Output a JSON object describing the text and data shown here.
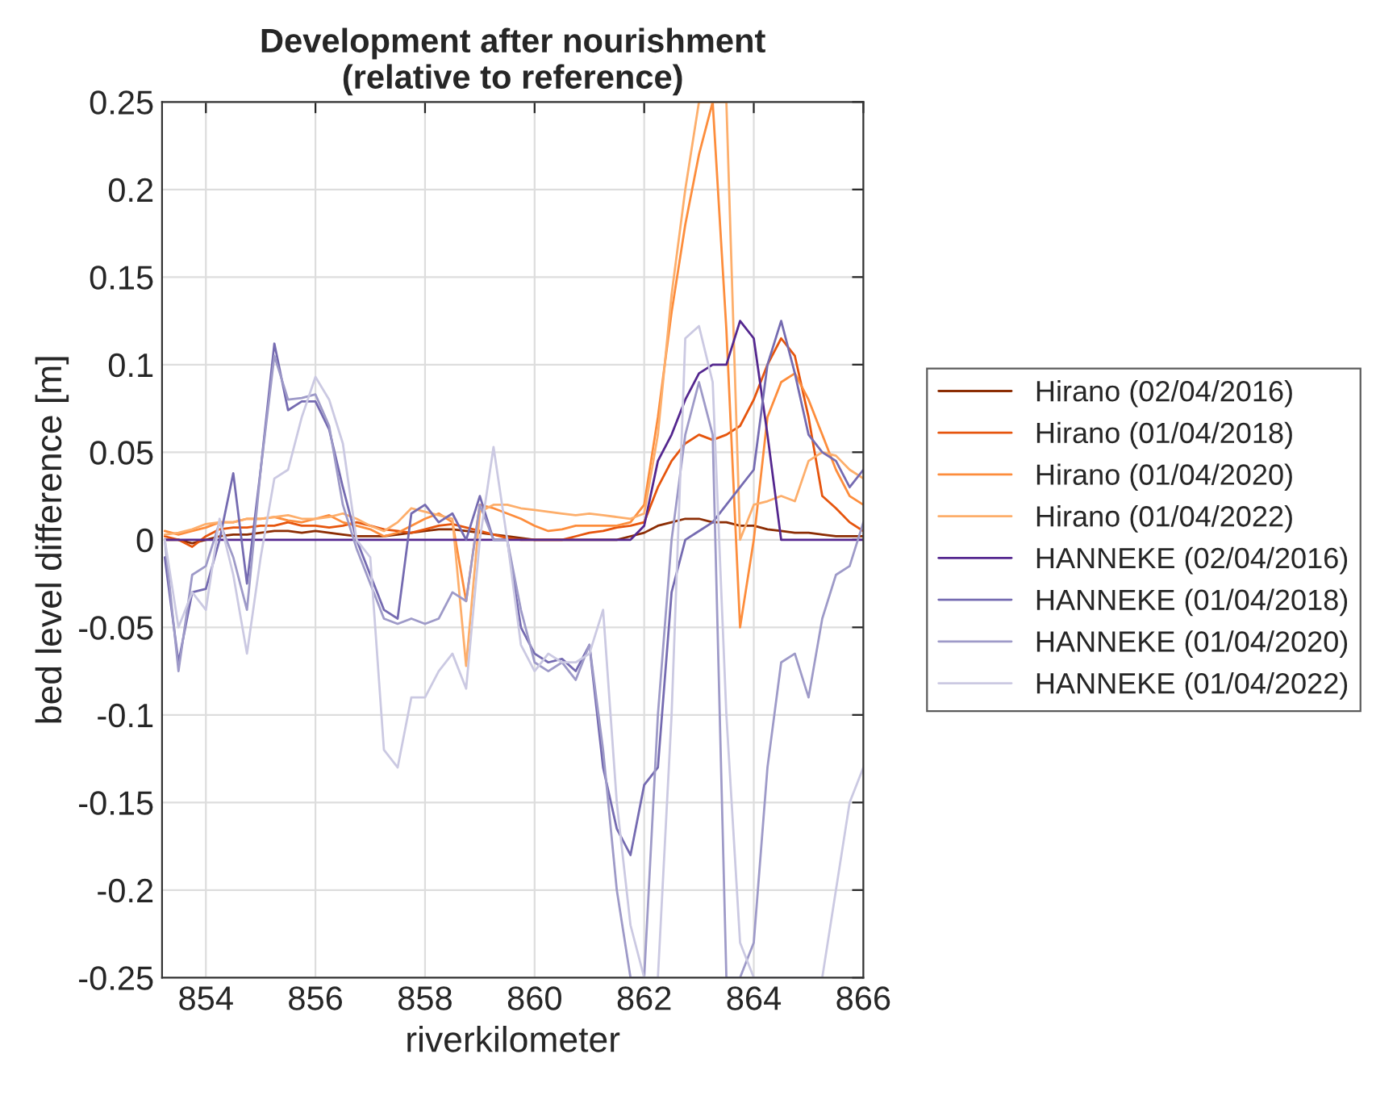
{
  "chart_data": {
    "type": "line",
    "title": "Development after nourishment\n(relative to reference)",
    "xlabel": "riverkilometer",
    "ylabel": "bed level difference [m]",
    "x": [
      853.25,
      853.5,
      853.75,
      854,
      854.25,
      854.5,
      854.75,
      855,
      855.25,
      855.5,
      855.75,
      856,
      856.25,
      856.5,
      856.75,
      857,
      857.25,
      857.5,
      857.75,
      858,
      858.25,
      858.5,
      858.75,
      859,
      859.25,
      859.5,
      859.75,
      860,
      860.25,
      860.5,
      860.75,
      861,
      861.25,
      861.5,
      861.75,
      862,
      862.25,
      862.5,
      862.75,
      863,
      863.25,
      863.5,
      863.75,
      864,
      864.25,
      864.5,
      864.75,
      865,
      865.25,
      865.5,
      865.75,
      866
    ],
    "xlim": [
      853.2,
      866
    ],
    "xticks": [
      854,
      856,
      858,
      860,
      862,
      864,
      866
    ],
    "ylim": [
      -0.25,
      0.25
    ],
    "yticks": [
      -0.25,
      -0.2,
      -0.15,
      -0.1,
      -0.05,
      0,
      0.05,
      0.1,
      0.15,
      0.2,
      0.25
    ],
    "grid": true,
    "legend": "right",
    "series": [
      {
        "name": "Hirano (02/04/2016)",
        "color": "#8c2d04",
        "values": [
          0,
          0,
          -0.002,
          0,
          0.002,
          0.003,
          0.003,
          0.004,
          0.005,
          0.005,
          0.004,
          0.005,
          0.004,
          0.003,
          0.002,
          0.002,
          0.002,
          0.003,
          0.004,
          0.005,
          0.006,
          0.006,
          0.005,
          0.004,
          0.003,
          0.002,
          0.001,
          0,
          0,
          0,
          0,
          0,
          0,
          0,
          0.002,
          0.004,
          0.008,
          0.01,
          0.012,
          0.012,
          0.01,
          0.01,
          0.008,
          0.008,
          0.006,
          0.005,
          0.004,
          0.004,
          0.003,
          0.002,
          0.002,
          0.002
        ]
      },
      {
        "name": "Hirano (01/04/2018)",
        "color": "#e6550d",
        "values": [
          0.002,
          0,
          -0.004,
          0.002,
          0.006,
          0.007,
          0.007,
          0.008,
          0.008,
          0.01,
          0.008,
          0.008,
          0.007,
          0.008,
          0.01,
          0.008,
          0.006,
          0.005,
          0.004,
          0.006,
          0.008,
          0.009,
          0.007,
          0.005,
          0.003,
          0.001,
          0,
          0,
          0,
          0,
          0.002,
          0.004,
          0.005,
          0.007,
          0.008,
          0.01,
          0.03,
          0.045,
          0.055,
          0.06,
          0.057,
          0.06,
          0.065,
          0.08,
          0.1,
          0.115,
          0.105,
          0.07,
          0.025,
          0.018,
          0.01,
          0.005
        ]
      },
      {
        "name": "Hirano (01/04/2020)",
        "color": "#fd8d3c",
        "values": [
          0.005,
          0.003,
          0.005,
          0.007,
          0.01,
          0.01,
          0.012,
          0.012,
          0.013,
          0.011,
          0.01,
          0.012,
          0.014,
          0.01,
          0.008,
          0.006,
          0.002,
          0.004,
          0.008,
          0.012,
          0.015,
          0.01,
          -0.035,
          0.02,
          0.018,
          0.015,
          0.012,
          0.008,
          0.005,
          0.006,
          0.008,
          0.008,
          0.008,
          0.008,
          0.01,
          0.02,
          0.07,
          0.13,
          0.18,
          0.22,
          0.25,
          0.12,
          -0.05,
          0.0,
          0.07,
          0.09,
          0.095,
          0.08,
          0.06,
          0.04,
          0.025,
          0.02
        ]
      },
      {
        "name": "Hirano (01/04/2022)",
        "color": "#fdae6b",
        "values": [
          0.003,
          0.004,
          0.006,
          0.009,
          0.01,
          0.01,
          0.012,
          0.012,
          0.013,
          0.014,
          0.012,
          0.012,
          0.013,
          0.015,
          0.012,
          0.008,
          0.005,
          0.01,
          0.018,
          0.016,
          0.014,
          0.012,
          -0.072,
          0.016,
          0.02,
          0.02,
          0.018,
          0.017,
          0.016,
          0.015,
          0.014,
          0.015,
          0.014,
          0.013,
          0.012,
          0.015,
          0.06,
          0.14,
          0.2,
          0.25,
          0.25,
          0.25,
          0.0,
          0.02,
          0.022,
          0.025,
          0.022,
          0.045,
          0.05,
          0.048,
          0.04,
          0.035
        ]
      },
      {
        "name": "HANNEKE (02/04/2016)",
        "color": "#54278f",
        "values": [
          0,
          0,
          0,
          0,
          0,
          0,
          0,
          0,
          0,
          0,
          0,
          0,
          0,
          0,
          0,
          0,
          0,
          0,
          0,
          0,
          0,
          0,
          0,
          0,
          0,
          0,
          0,
          0,
          0,
          0,
          0,
          0,
          0,
          0,
          0,
          0.008,
          0.045,
          0.06,
          0.08,
          0.095,
          0.1,
          0.1,
          0.125,
          0.115,
          0.06,
          0,
          0,
          0,
          0,
          0,
          0,
          0
        ]
      },
      {
        "name": "HANNEKE (01/04/2018)",
        "color": "#756bb1",
        "values": [
          -0.01,
          -0.07,
          -0.03,
          -0.028,
          0.0,
          0.038,
          -0.025,
          0.04,
          0.112,
          0.074,
          0.079,
          0.079,
          0.063,
          0.03,
          0.0,
          -0.02,
          -0.04,
          -0.045,
          0.015,
          0.02,
          0.01,
          0.015,
          0.0,
          0.025,
          0.0,
          0.0,
          -0.05,
          -0.065,
          -0.07,
          -0.068,
          -0.075,
          -0.06,
          -0.13,
          -0.165,
          -0.18,
          -0.14,
          -0.13,
          -0.03,
          0.0,
          0.005,
          0.01,
          0.02,
          0.03,
          0.04,
          0.1,
          0.125,
          0.095,
          0.06,
          0.05,
          0.045,
          0.03,
          0.04
        ]
      },
      {
        "name": "HANNEKE (01/04/2020)",
        "color": "#9e9ac8",
        "values": [
          0,
          -0.075,
          -0.02,
          -0.015,
          0.01,
          -0.01,
          -0.04,
          0.04,
          0.105,
          0.08,
          0.081,
          0.083,
          0.065,
          0.02,
          -0.005,
          -0.025,
          -0.045,
          -0.048,
          -0.045,
          -0.048,
          -0.045,
          -0.03,
          -0.035,
          0.02,
          0.0,
          0.0,
          -0.04,
          -0.07,
          -0.075,
          -0.07,
          -0.08,
          -0.06,
          -0.12,
          -0.2,
          -0.25,
          -0.25,
          -0.1,
          0.0,
          0.06,
          0.09,
          0.06,
          -0.25,
          -0.25,
          -0.23,
          -0.13,
          -0.07,
          -0.065,
          -0.09,
          -0.045,
          -0.02,
          -0.015,
          0.01
        ]
      },
      {
        "name": "HANNEKE (01/04/2022)",
        "color": "#cbc9e2",
        "values": [
          0,
          -0.05,
          -0.03,
          -0.04,
          0.012,
          -0.02,
          -0.065,
          -0.01,
          0.035,
          0.04,
          0.07,
          0.093,
          0.08,
          0.055,
          0.0,
          -0.01,
          -0.12,
          -0.13,
          -0.09,
          -0.09,
          -0.075,
          -0.065,
          -0.085,
          0.0,
          0.053,
          0.0,
          -0.06,
          -0.075,
          -0.065,
          -0.07,
          -0.07,
          -0.065,
          -0.04,
          -0.15,
          -0.22,
          -0.25,
          -0.25,
          -0.1,
          0.115,
          0.122,
          0.09,
          -0.1,
          -0.23,
          -0.25,
          null,
          null,
          null,
          null,
          -0.25,
          -0.2,
          -0.15,
          -0.13
        ]
      }
    ]
  }
}
